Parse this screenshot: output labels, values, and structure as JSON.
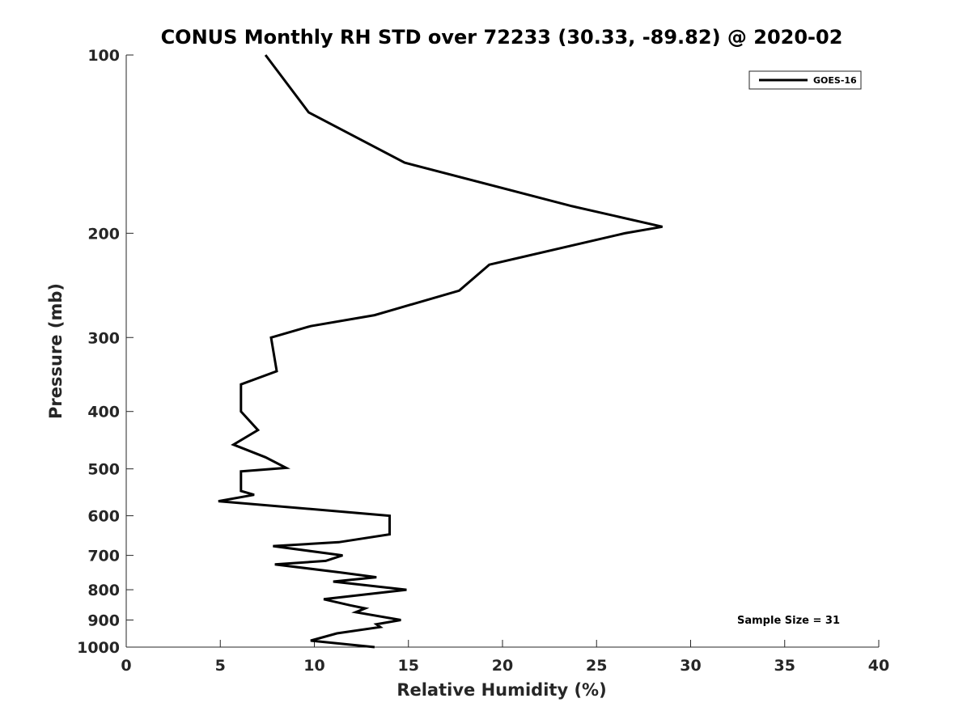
{
  "chart_data": {
    "type": "line",
    "title": "CONUS Monthly RH STD over 72233 (30.33, -89.82) @ 2020-02",
    "xlabel": "Relative Humidity (%)",
    "ylabel": "Pressure (mb)",
    "xlim": [
      0,
      40
    ],
    "ylim": [
      100,
      1000
    ],
    "y_scale": "log",
    "y_reversed": true,
    "x_ticks": [
      "0",
      "5",
      "10",
      "15",
      "20",
      "25",
      "30",
      "35",
      "40"
    ],
    "y_ticks": [
      "100",
      "200",
      "300",
      "400",
      "500",
      "600",
      "700",
      "800",
      "900",
      "1000"
    ],
    "grid": false,
    "legend_position": "top-right",
    "annotation": "Sample Size = 31",
    "series": [
      {
        "name": "GOES-16",
        "color": "#000000",
        "points": [
          [
            7.4,
            100
          ],
          [
            9.7,
            125
          ],
          [
            14.8,
            152
          ],
          [
            23.7,
            180
          ],
          [
            28.5,
            195
          ],
          [
            26.5,
            200
          ],
          [
            19.3,
            226
          ],
          [
            17.7,
            250
          ],
          [
            13.2,
            275
          ],
          [
            9.8,
            287
          ],
          [
            7.7,
            300
          ],
          [
            8.0,
            342
          ],
          [
            6.1,
            360
          ],
          [
            6.1,
            400
          ],
          [
            7.0,
            430
          ],
          [
            5.7,
            455
          ],
          [
            7.4,
            478
          ],
          [
            8.5,
            498
          ],
          [
            6.1,
            505
          ],
          [
            6.1,
            545
          ],
          [
            6.8,
            553
          ],
          [
            4.9,
            567
          ],
          [
            14.0,
            600
          ],
          [
            14.0,
            645
          ],
          [
            11.3,
            665
          ],
          [
            7.8,
            675
          ],
          [
            11.5,
            700
          ],
          [
            10.6,
            715
          ],
          [
            7.9,
            725
          ],
          [
            11.4,
            748
          ],
          [
            13.3,
            762
          ],
          [
            11.0,
            775
          ],
          [
            14.9,
            800
          ],
          [
            10.5,
            830
          ],
          [
            11.9,
            850
          ],
          [
            12.7,
            860
          ],
          [
            12.2,
            873
          ],
          [
            14.6,
            900
          ],
          [
            13.3,
            915
          ],
          [
            13.5,
            925
          ],
          [
            11.2,
            948
          ],
          [
            9.8,
            975
          ],
          [
            13.2,
            1000
          ]
        ]
      }
    ]
  }
}
